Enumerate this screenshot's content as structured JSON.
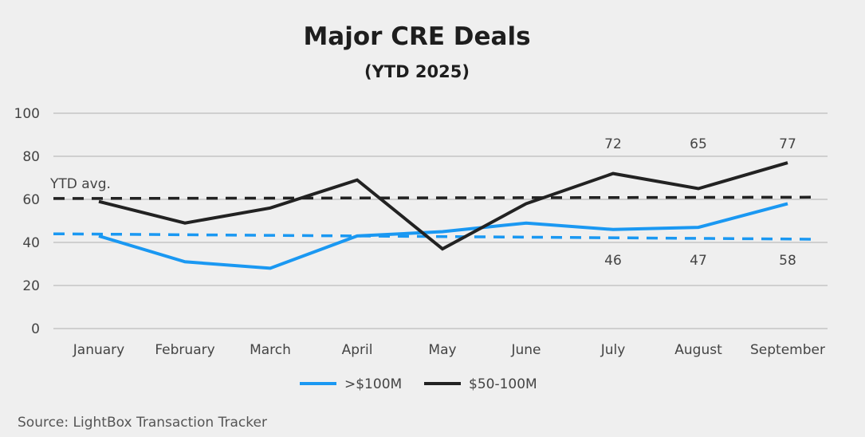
{
  "chart_data": {
    "type": "line",
    "title": "Major CRE Deals",
    "subtitle": "(YTD 2025)",
    "categories": [
      "January",
      "February",
      "March",
      "April",
      "May",
      "June",
      "July",
      "August",
      "September"
    ],
    "ylim": [
      0,
      100
    ],
    "yticks": [
      0,
      20,
      40,
      60,
      80,
      100
    ],
    "grid": true,
    "legend_position": "bottom",
    "series": [
      {
        "name": ">$100M",
        "color": "#1a98f2",
        "values": [
          43,
          31,
          28,
          43,
          45,
          49,
          46,
          47,
          58
        ],
        "avg_line": [
          44,
          41.5
        ]
      },
      {
        "name": "$50-100M",
        "color": "#222222",
        "values": [
          59,
          49,
          56,
          69,
          37,
          58,
          72,
          65,
          77
        ],
        "avg_line": [
          60.4,
          61
        ]
      }
    ],
    "data_labels": [
      {
        "series": 1,
        "index": 6,
        "text": "72"
      },
      {
        "series": 1,
        "index": 7,
        "text": "65"
      },
      {
        "series": 1,
        "index": 8,
        "text": "77"
      },
      {
        "series": 0,
        "index": 6,
        "text": "46"
      },
      {
        "series": 0,
        "index": 7,
        "text": "47"
      },
      {
        "series": 0,
        "index": 8,
        "text": "58"
      }
    ],
    "annotation": "YTD avg.",
    "source": "Source: LightBox Transaction Tracker"
  }
}
